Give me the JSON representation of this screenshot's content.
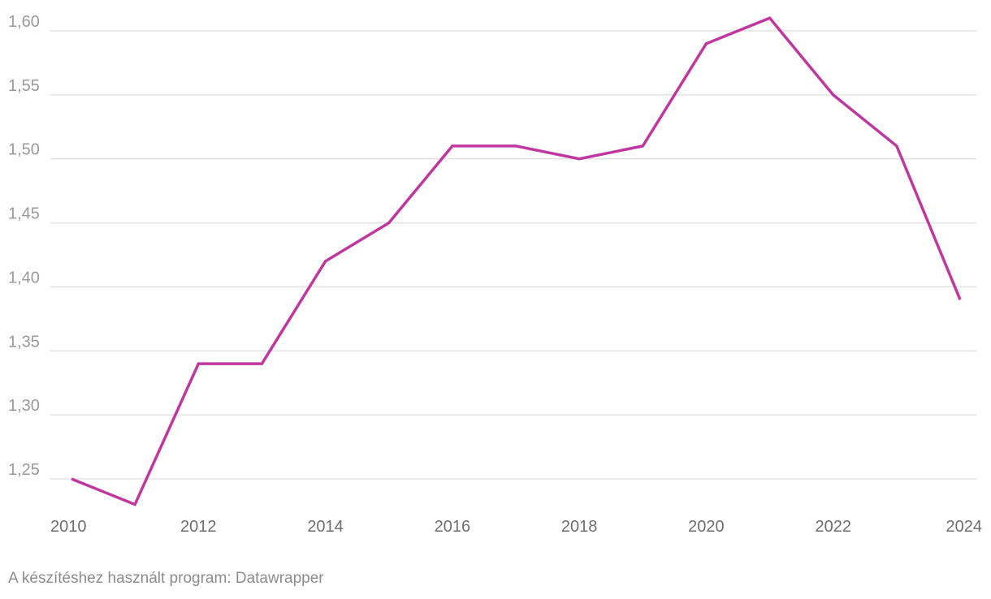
{
  "chart_data": {
    "type": "line",
    "title": "",
    "xlabel": "",
    "ylabel": "",
    "x": [
      2010,
      2011,
      2012,
      2013,
      2014,
      2015,
      2016,
      2017,
      2018,
      2019,
      2020,
      2021,
      2022,
      2023,
      2024
    ],
    "series": [
      {
        "values": [
          1.25,
          1.23,
          1.34,
          1.34,
          1.42,
          1.45,
          1.51,
          1.51,
          1.5,
          1.51,
          1.59,
          1.61,
          1.55,
          1.51,
          1.39
        ],
        "color": "#c0379f"
      }
    ],
    "xlim": [
      2010,
      2024
    ],
    "ylim": [
      1.25,
      1.6
    ],
    "x_ticks": [
      "2010",
      "2012",
      "2014",
      "2016",
      "2018",
      "2020",
      "2022",
      "2024"
    ],
    "y_ticks": [
      "1,25",
      "1,30",
      "1,35",
      "1,40",
      "1,45",
      "1,50",
      "1,55",
      "1,60"
    ],
    "grid": true,
    "legend": "none"
  },
  "credit": "A készítéshez használt program: Datawrapper"
}
